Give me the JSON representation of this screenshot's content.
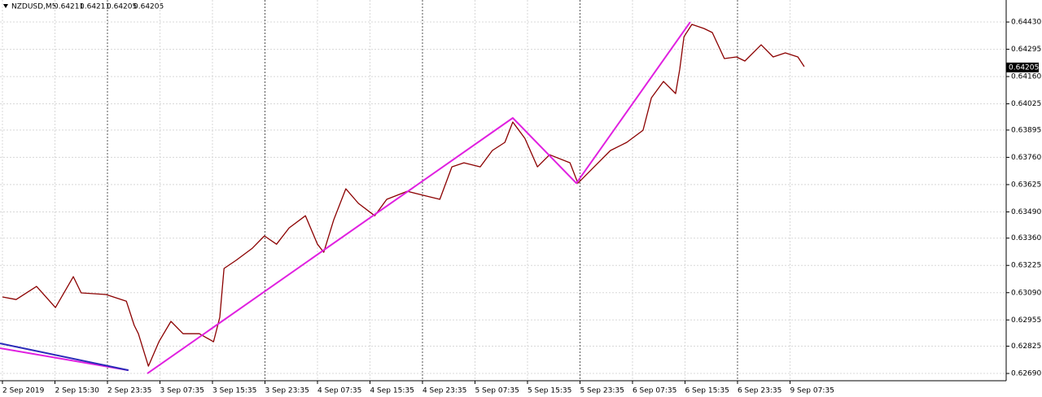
{
  "chart_data": {
    "type": "line",
    "title": "NZDUSD,M5",
    "quote": [
      0.64211,
      0.64211,
      0.64205,
      0.64205
    ],
    "last_price": {
      "value": 0.64205,
      "label": "0.64205"
    },
    "grid": true,
    "xlim": [
      -0.0465,
      19.117
    ],
    "ylim": [
      0.62654,
      0.64539
    ],
    "xticks": [
      {
        "value": 0,
        "label": "2 Sep 2019"
      },
      {
        "value": 1,
        "label": "2 Sep 15:30"
      },
      {
        "value": 2,
        "label": "2 Sep 23:35"
      },
      {
        "value": 3,
        "label": "3 Sep 07:35"
      },
      {
        "value": 4,
        "label": "3 Sep 15:35"
      },
      {
        "value": 5,
        "label": "3 Sep 23:35"
      },
      {
        "value": 6,
        "label": "4 Sep 07:35"
      },
      {
        "value": 7,
        "label": "4 Sep 15:35"
      },
      {
        "value": 8,
        "label": "4 Sep 23:35"
      },
      {
        "value": 9,
        "label": "5 Sep 07:35"
      },
      {
        "value": 10,
        "label": "5 Sep 15:35"
      },
      {
        "value": 11,
        "label": "5 Sep 23:35"
      },
      {
        "value": 12,
        "label": "6 Sep 07:35"
      },
      {
        "value": 13,
        "label": "6 Sep 15:35"
      },
      {
        "value": 14,
        "label": "6 Sep 23:35"
      },
      {
        "value": 15,
        "label": "9 Sep 07:35"
      }
    ],
    "yticks": [
      {
        "value": 0.6269,
        "label": "0.62690"
      },
      {
        "value": 0.62825,
        "label": "0.62825"
      },
      0.62955,
      {
        "value": 0.6309,
        "label": "0.63090"
      },
      0.63225,
      {
        "value": 0.6336,
        "label": "0.63360"
      },
      {
        "value": 0.6349,
        "label": "0.63490"
      },
      0.63625,
      {
        "value": 0.6376,
        "label": "0.63760"
      },
      0.63895,
      0.64025,
      {
        "value": 0.6416,
        "label": "0.64160"
      },
      0.64295,
      {
        "value": 0.6443,
        "label": "0.64430"
      }
    ],
    "series": [
      {
        "color": "#8b0000",
        "x": [
          0,
          0.26,
          0.65,
          1.01,
          1.35,
          1.5,
          1.97,
          2.36,
          2.51,
          2.59,
          2.78,
          2.98,
          3.21,
          3.44,
          3.75,
          4.02,
          4.14,
          4.22,
          4.45,
          4.76,
          4.99,
          5.22,
          5.46,
          5.77,
          6.0,
          6.12,
          6.31,
          6.54,
          6.78,
          7.09,
          7.32,
          7.71,
          8.02,
          8.33,
          8.56,
          8.79,
          9.1,
          9.33,
          9.57,
          9.72,
          9.95,
          10.19,
          10.42,
          10.81,
          10.96,
          11.27,
          11.58,
          11.89,
          12.2,
          12.36,
          12.59,
          12.82,
          12.9,
          12.98,
          13.13,
          13.36,
          13.52,
          13.75,
          13.98,
          14.14,
          14.45,
          14.68,
          14.91,
          15.15,
          15.27
        ],
        "values": [
          0.63069,
          0.63056,
          0.63121,
          0.63016,
          0.63169,
          0.63089,
          0.63081,
          0.63048,
          0.62928,
          0.62887,
          0.62726,
          0.62847,
          0.62948,
          0.62887,
          0.62887,
          0.62847,
          0.62968,
          0.6321,
          0.6325,
          0.6331,
          0.63371,
          0.6333,
          0.63411,
          0.63471,
          0.6333,
          0.6329,
          0.63451,
          0.63604,
          0.63532,
          0.63471,
          0.63552,
          0.63592,
          0.63572,
          0.63552,
          0.63713,
          0.63733,
          0.63713,
          0.63794,
          0.63834,
          0.63935,
          0.63854,
          0.63713,
          0.63773,
          0.63733,
          0.63632,
          0.63713,
          0.63794,
          0.63834,
          0.63894,
          0.64055,
          0.64136,
          0.64076,
          0.64196,
          0.64357,
          0.64418,
          0.64398,
          0.64378,
          0.64249,
          0.64257,
          0.64237,
          0.64317,
          0.64257,
          0.64277,
          0.64257,
          0.64209
        ]
      },
      {
        "color": "#e020e0",
        "x": [
          2.76,
          9.72,
          10.93,
          13.1
        ],
        "values": [
          0.6269,
          0.63955,
          0.63632,
          0.6443
        ]
      },
      {
        "color": "#e020e0",
        "x": [
          -0.0465,
          2.4
        ],
        "values": [
          0.62815,
          0.62706
        ]
      },
      {
        "color": "#2a2ab8",
        "x": [
          -0.0465,
          2.4
        ],
        "values": [
          0.62839,
          0.62706
        ]
      }
    ]
  }
}
